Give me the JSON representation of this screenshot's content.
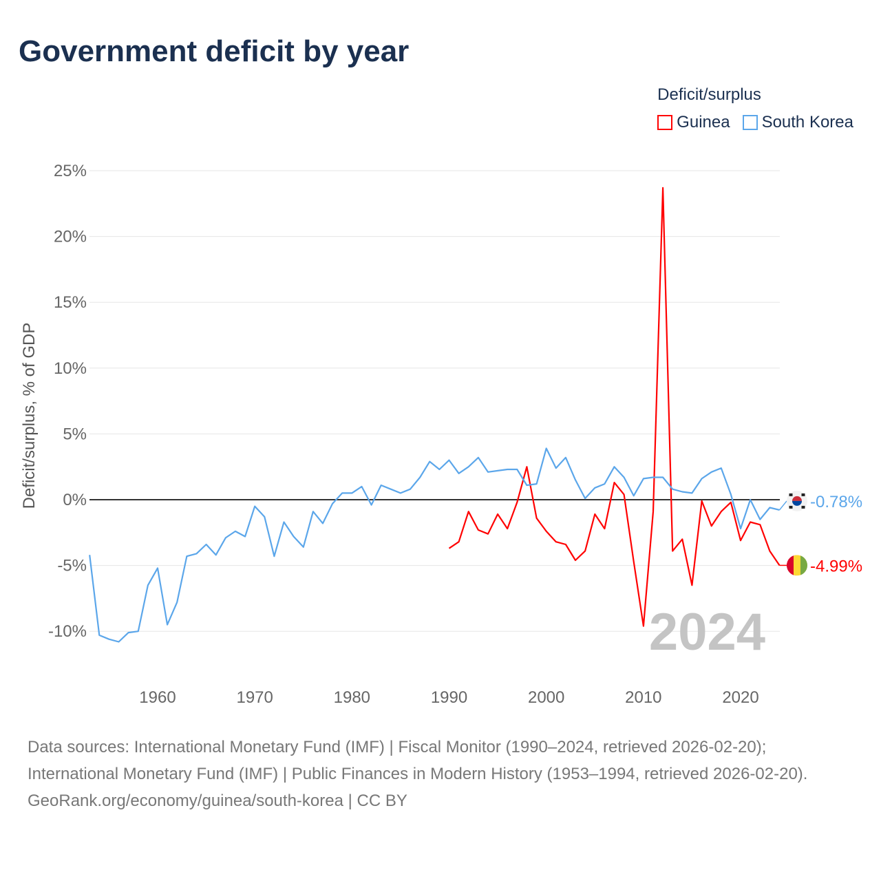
{
  "chart_data": {
    "type": "line",
    "title": "Government deficit by year",
    "ylabel": "Deficit/surplus, % of GDP",
    "xlabel": "",
    "ylim": [
      -12,
      25
    ],
    "xlim": [
      1953,
      2024
    ],
    "yticks": [
      -10,
      -5,
      0,
      5,
      10,
      15,
      20,
      25
    ],
    "ytick_labels": [
      "-10%",
      "-5%",
      "0%",
      "5%",
      "10%",
      "15%",
      "20%",
      "25%"
    ],
    "xticks": [
      1960,
      1970,
      1980,
      1990,
      2000,
      2010,
      2020
    ],
    "xtick_labels": [
      "1960",
      "1970",
      "1980",
      "1990",
      "2000",
      "2010",
      "2020"
    ],
    "grid": true,
    "legend_title": "Deficit/surplus",
    "legend_position": "top-right",
    "year_watermark": "2024",
    "series": [
      {
        "name": "Guinea",
        "color": "#ff0000",
        "start_year": 1990,
        "end_label": "-4.99%",
        "values": [
          -3.7,
          -3.2,
          -0.9,
          -2.3,
          -2.6,
          -1.1,
          -2.2,
          -0.2,
          2.5,
          -1.4,
          -2.4,
          -3.2,
          -3.4,
          -4.6,
          -3.9,
          -1.1,
          -2.2,
          1.3,
          0.4,
          -4.7,
          -9.6,
          -0.9,
          23.7,
          -3.9,
          -3.0,
          -6.5,
          -0.1,
          -2.0,
          -0.9,
          -0.2,
          -3.1,
          -1.7,
          -1.9,
          -3.9,
          -4.99
        ]
      },
      {
        "name": "South Korea",
        "color": "#5ba6ea",
        "start_year": 1953,
        "end_label": "-0.78%",
        "values": [
          -4.2,
          -10.3,
          -10.6,
          -10.8,
          -10.1,
          -10.0,
          -6.5,
          -5.2,
          -9.5,
          -7.8,
          -4.3,
          -4.1,
          -3.4,
          -4.2,
          -2.9,
          -2.4,
          -2.8,
          -0.5,
          -1.3,
          -4.3,
          -1.7,
          -2.8,
          -3.6,
          -0.9,
          -1.8,
          -0.3,
          0.5,
          0.5,
          1.0,
          -0.4,
          1.1,
          0.8,
          0.5,
          0.8,
          1.7,
          2.9,
          2.3,
          3.0,
          2.0,
          2.5,
          3.2,
          2.1,
          2.2,
          2.3,
          2.3,
          1.1,
          1.2,
          3.9,
          2.4,
          3.2,
          1.5,
          0.1,
          0.9,
          1.2,
          2.5,
          1.7,
          0.3,
          1.6,
          1.7,
          1.7,
          0.8,
          0.6,
          0.5,
          1.6,
          2.1,
          2.4,
          0.4,
          -2.2,
          0.0,
          -1.5,
          -0.6,
          -0.78
        ]
      }
    ]
  },
  "footer": {
    "sources": "Data sources: International Monetary Fund (IMF) | Fiscal Monitor (1990–2024, retrieved 2026-02-20); International Monetary Fund (IMF) | Public Finances in Modern History (1953–1994, retrieved 2026-02-20).",
    "link": "GeoRank.org/economy/guinea/south-korea | CC BY"
  }
}
